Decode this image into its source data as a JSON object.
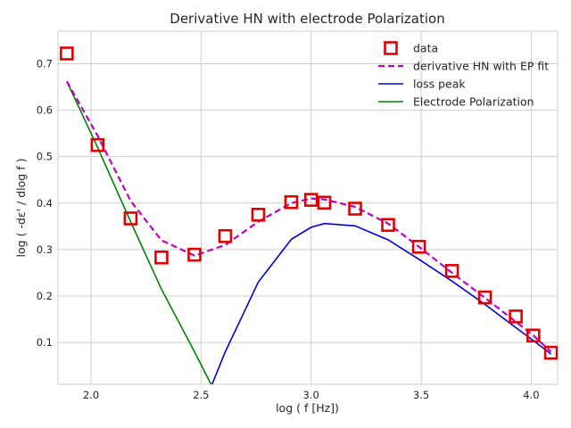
{
  "chart_data": {
    "type": "line",
    "title": "Derivative HN with electrode Polarization",
    "xlabel": "log ( f [Hz])",
    "ylabel": "log ( -dε' / dlog f )",
    "xlim": [
      1.85,
      4.12
    ],
    "ylim": [
      0.01,
      0.77
    ],
    "xticks": [
      "2.0",
      "2.5",
      "3.0",
      "3.5",
      "4.0"
    ],
    "yticks": [
      "0.1",
      "0.2",
      "0.3",
      "0.4",
      "0.5",
      "0.6",
      "0.7"
    ],
    "grid": true,
    "legend_position": "top-right",
    "series": [
      {
        "name": "data",
        "kind": "markers",
        "marker": "square",
        "color": "#e00000",
        "x": [
          1.89,
          2.03,
          2.18,
          2.32,
          2.47,
          2.61,
          2.76,
          2.91,
          3.0,
          3.06,
          3.2,
          3.35,
          3.49,
          3.64,
          3.79,
          3.93,
          4.01,
          4.09
        ],
        "y": [
          0.722,
          0.525,
          0.367,
          0.283,
          0.289,
          0.329,
          0.375,
          0.402,
          0.407,
          0.401,
          0.388,
          0.353,
          0.306,
          0.254,
          0.197,
          0.156,
          0.115,
          0.078
        ]
      },
      {
        "name": "derivative HN with EP fit",
        "kind": "line",
        "dash": true,
        "color": "#bf00bf",
        "x": [
          1.89,
          2.03,
          2.18,
          2.32,
          2.47,
          2.61,
          2.76,
          2.91,
          3.0,
          3.06,
          3.2,
          3.35,
          3.49,
          3.64,
          3.79,
          3.93,
          4.01,
          4.09
        ],
        "y": [
          0.662,
          0.545,
          0.405,
          0.32,
          0.287,
          0.31,
          0.36,
          0.4,
          0.41,
          0.408,
          0.392,
          0.356,
          0.306,
          0.25,
          0.196,
          0.145,
          0.115,
          0.08
        ]
      },
      {
        "name": "loss peak",
        "kind": "line",
        "color": "#0000dd",
        "x": [
          2.55,
          2.61,
          2.76,
          2.91,
          3.0,
          3.06,
          3.2,
          3.35,
          3.49,
          3.64,
          3.79,
          3.93,
          4.01,
          4.09
        ],
        "y": [
          0.01,
          0.08,
          0.23,
          0.322,
          0.348,
          0.356,
          0.351,
          0.321,
          0.279,
          0.232,
          0.182,
          0.132,
          0.104,
          0.075
        ]
      },
      {
        "name": "Electrode Polarization",
        "kind": "line",
        "color": "#008000",
        "x": [
          1.89,
          2.03,
          2.18,
          2.32,
          2.47,
          2.545
        ],
        "y": [
          0.662,
          0.52,
          0.36,
          0.215,
          0.08,
          0.01
        ]
      }
    ]
  }
}
